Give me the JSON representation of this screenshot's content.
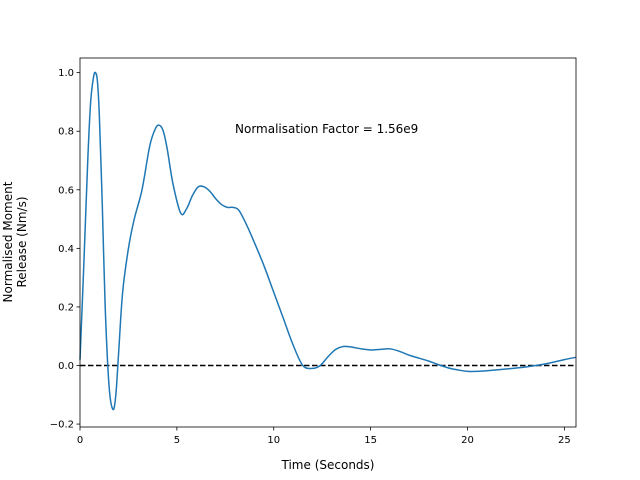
{
  "chart_data": {
    "type": "line",
    "title": "",
    "xlabel": "Time (Seconds)",
    "ylabel_lines": [
      "Normalised Moment",
      "Release (Nm/s)"
    ],
    "xlim": [
      0,
      25.6
    ],
    "ylim": [
      -0.21,
      1.05
    ],
    "x_ticks": [
      0,
      5,
      10,
      15,
      20,
      25
    ],
    "y_ticks": [
      -0.2,
      0.0,
      0.2,
      0.4,
      0.6,
      0.8,
      1.0
    ],
    "x_tick_labels": [
      "0",
      "5",
      "10",
      "15",
      "20",
      "25"
    ],
    "y_tick_labels": [
      "−0.2",
      "0.0",
      "0.2",
      "0.4",
      "0.6",
      "0.8",
      "1.0"
    ],
    "annotation": "Normalisation Factor = 1.56e9",
    "reference_line": {
      "y": 0,
      "style": "dashed",
      "color": "#000000"
    },
    "grid": false,
    "series": [
      {
        "color": "#1f77b4",
        "x": [
          0,
          0.2,
          0.4,
          0.55,
          0.7,
          0.8,
          0.9,
          1.0,
          1.15,
          1.3,
          1.5,
          1.7,
          1.85,
          2.0,
          2.2,
          2.5,
          2.8,
          3.2,
          3.6,
          3.9,
          4.1,
          4.3,
          4.5,
          4.8,
          5.2,
          5.5,
          5.8,
          6.1,
          6.4,
          6.7,
          7.0,
          7.3,
          7.6,
          7.9,
          8.2,
          8.6,
          9.0,
          9.5,
          10.0,
          10.5,
          11.0,
          11.5,
          12.0,
          12.4,
          12.8,
          13.2,
          13.6,
          14.0,
          14.5,
          15.0,
          15.5,
          16.0,
          16.5,
          17.0,
          17.5,
          18.0,
          18.5,
          19.0,
          19.5,
          20.0,
          20.5,
          21.0,
          22.0,
          23.0,
          24.0,
          25.0,
          25.6
        ],
        "y": [
          0.02,
          0.35,
          0.7,
          0.9,
          0.985,
          1.0,
          0.97,
          0.85,
          0.55,
          0.2,
          -0.07,
          -0.15,
          -0.1,
          0.05,
          0.25,
          0.4,
          0.5,
          0.6,
          0.75,
          0.81,
          0.82,
          0.8,
          0.74,
          0.62,
          0.52,
          0.535,
          0.58,
          0.61,
          0.61,
          0.595,
          0.57,
          0.55,
          0.54,
          0.54,
          0.53,
          0.48,
          0.42,
          0.34,
          0.25,
          0.16,
          0.07,
          0.0,
          -0.01,
          0.0,
          0.03,
          0.055,
          0.065,
          0.063,
          0.057,
          0.053,
          0.055,
          0.057,
          0.048,
          0.035,
          0.025,
          0.015,
          0.003,
          -0.008,
          -0.015,
          -0.02,
          -0.02,
          -0.018,
          -0.012,
          -0.005,
          0.005,
          0.02,
          0.028
        ]
      }
    ]
  }
}
